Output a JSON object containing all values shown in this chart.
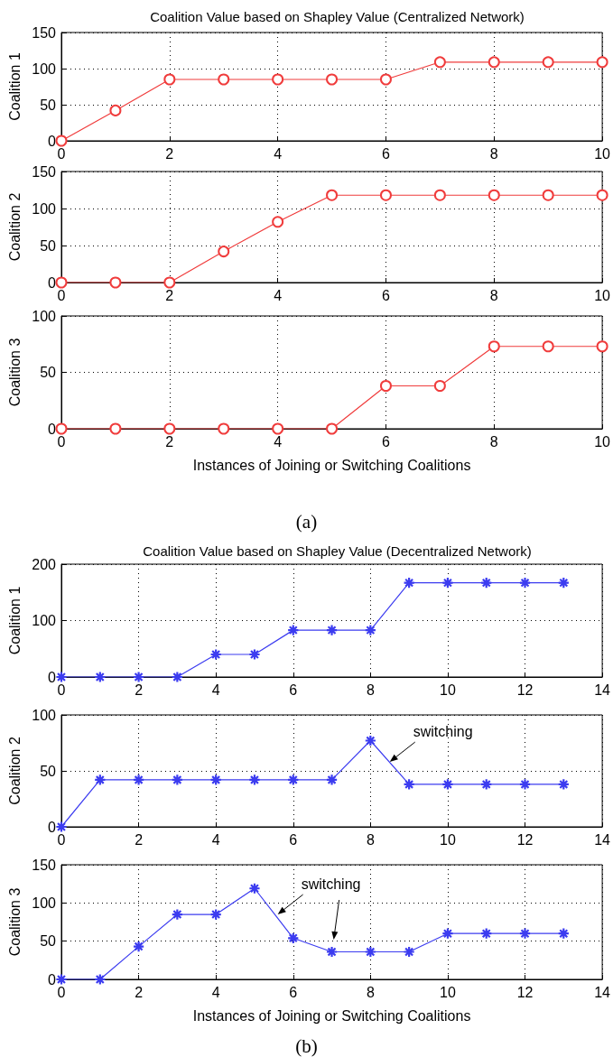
{
  "chart_data": [
    {
      "type": "line",
      "title": "Coalition Value based on Shapley Value (Centralized Network)",
      "ylabel": "Coalition 1",
      "x": [
        0,
        1,
        2,
        3,
        4,
        5,
        6,
        7,
        8,
        9,
        10
      ],
      "values": [
        0,
        42,
        85,
        85,
        85,
        85,
        85,
        109,
        109,
        109,
        109
      ],
      "color": "#f03c3c",
      "marker": "circle",
      "xlim": [
        0,
        10
      ],
      "xticks": [
        0,
        2,
        4,
        6,
        8,
        10
      ],
      "ylim": [
        0,
        150
      ],
      "yticks": [
        0,
        50,
        100,
        150
      ],
      "grid": true
    },
    {
      "type": "line",
      "ylabel": "Coalition 2",
      "x": [
        0,
        1,
        2,
        3,
        4,
        5,
        6,
        7,
        8,
        9,
        10
      ],
      "values": [
        0,
        0,
        0,
        42,
        82,
        118,
        118,
        118,
        118,
        118,
        118
      ],
      "color": "#f03c3c",
      "marker": "circle",
      "xlim": [
        0,
        10
      ],
      "xticks": [
        0,
        2,
        4,
        6,
        8,
        10
      ],
      "ylim": [
        0,
        150
      ],
      "yticks": [
        0,
        50,
        100,
        150
      ],
      "grid": true
    },
    {
      "type": "line",
      "ylabel": "Coalition 3",
      "xlabel": "Instances of Joining or Switching Coalitions",
      "x": [
        0,
        1,
        2,
        3,
        4,
        5,
        6,
        7,
        8,
        9,
        10
      ],
      "values": [
        0,
        0,
        0,
        0,
        0,
        0,
        38,
        38,
        73,
        73,
        73
      ],
      "color": "#f03c3c",
      "marker": "circle",
      "xlim": [
        0,
        10
      ],
      "xticks": [
        0,
        2,
        4,
        6,
        8,
        10
      ],
      "ylim": [
        0,
        100
      ],
      "yticks": [
        0,
        50,
        100
      ],
      "grid": true,
      "annotations": [
        "(a)"
      ]
    },
    {
      "type": "line",
      "title": "Coalition Value based on Shapley Value (Decentralized Network)",
      "ylabel": "Coalition 1",
      "x": [
        0,
        1,
        2,
        3,
        4,
        5,
        6,
        7,
        8,
        9,
        10,
        11,
        12,
        13
      ],
      "values": [
        0,
        0,
        0,
        0,
        40,
        40,
        83,
        83,
        83,
        167,
        167,
        167,
        167,
        167
      ],
      "color": "#3c3cf0",
      "marker": "star",
      "xlim": [
        0,
        14
      ],
      "xticks": [
        0,
        2,
        4,
        6,
        8,
        10,
        12,
        14
      ],
      "ylim": [
        0,
        200
      ],
      "yticks": [
        0,
        100,
        200
      ],
      "grid": true
    },
    {
      "type": "line",
      "ylabel": "Coalition 2",
      "x": [
        0,
        1,
        2,
        3,
        4,
        5,
        6,
        7,
        8,
        9,
        10,
        11,
        12,
        13
      ],
      "values": [
        0,
        42,
        42,
        42,
        42,
        42,
        42,
        42,
        77,
        38,
        38,
        38,
        38,
        38
      ],
      "color": "#3c3cf0",
      "marker": "star",
      "xlim": [
        0,
        14
      ],
      "xticks": [
        0,
        2,
        4,
        6,
        8,
        10,
        12,
        14
      ],
      "ylim": [
        0,
        100
      ],
      "yticks": [
        0,
        50,
        100
      ],
      "grid": true,
      "annotations": [
        {
          "text": "switching",
          "x": 8.5,
          "y": 58
        }
      ]
    },
    {
      "type": "line",
      "ylabel": "Coalition 3",
      "xlabel": "Instances of Joining or Switching Coalitions",
      "x": [
        0,
        1,
        2,
        3,
        4,
        5,
        6,
        7,
        8,
        9,
        10,
        11,
        12,
        13
      ],
      "values": [
        0,
        0,
        43,
        85,
        85,
        119,
        54,
        36,
        36,
        36,
        60,
        60,
        60,
        60
      ],
      "color": "#3c3cf0",
      "marker": "star",
      "xlim": [
        0,
        14
      ],
      "xticks": [
        0,
        2,
        4,
        6,
        8,
        10,
        12,
        14
      ],
      "ylim": [
        0,
        150
      ],
      "yticks": [
        0,
        50,
        100,
        150
      ],
      "grid": true,
      "annotations": [
        {
          "text": "switching",
          "x": 5.6,
          "y": 85
        },
        "(b)"
      ]
    }
  ]
}
